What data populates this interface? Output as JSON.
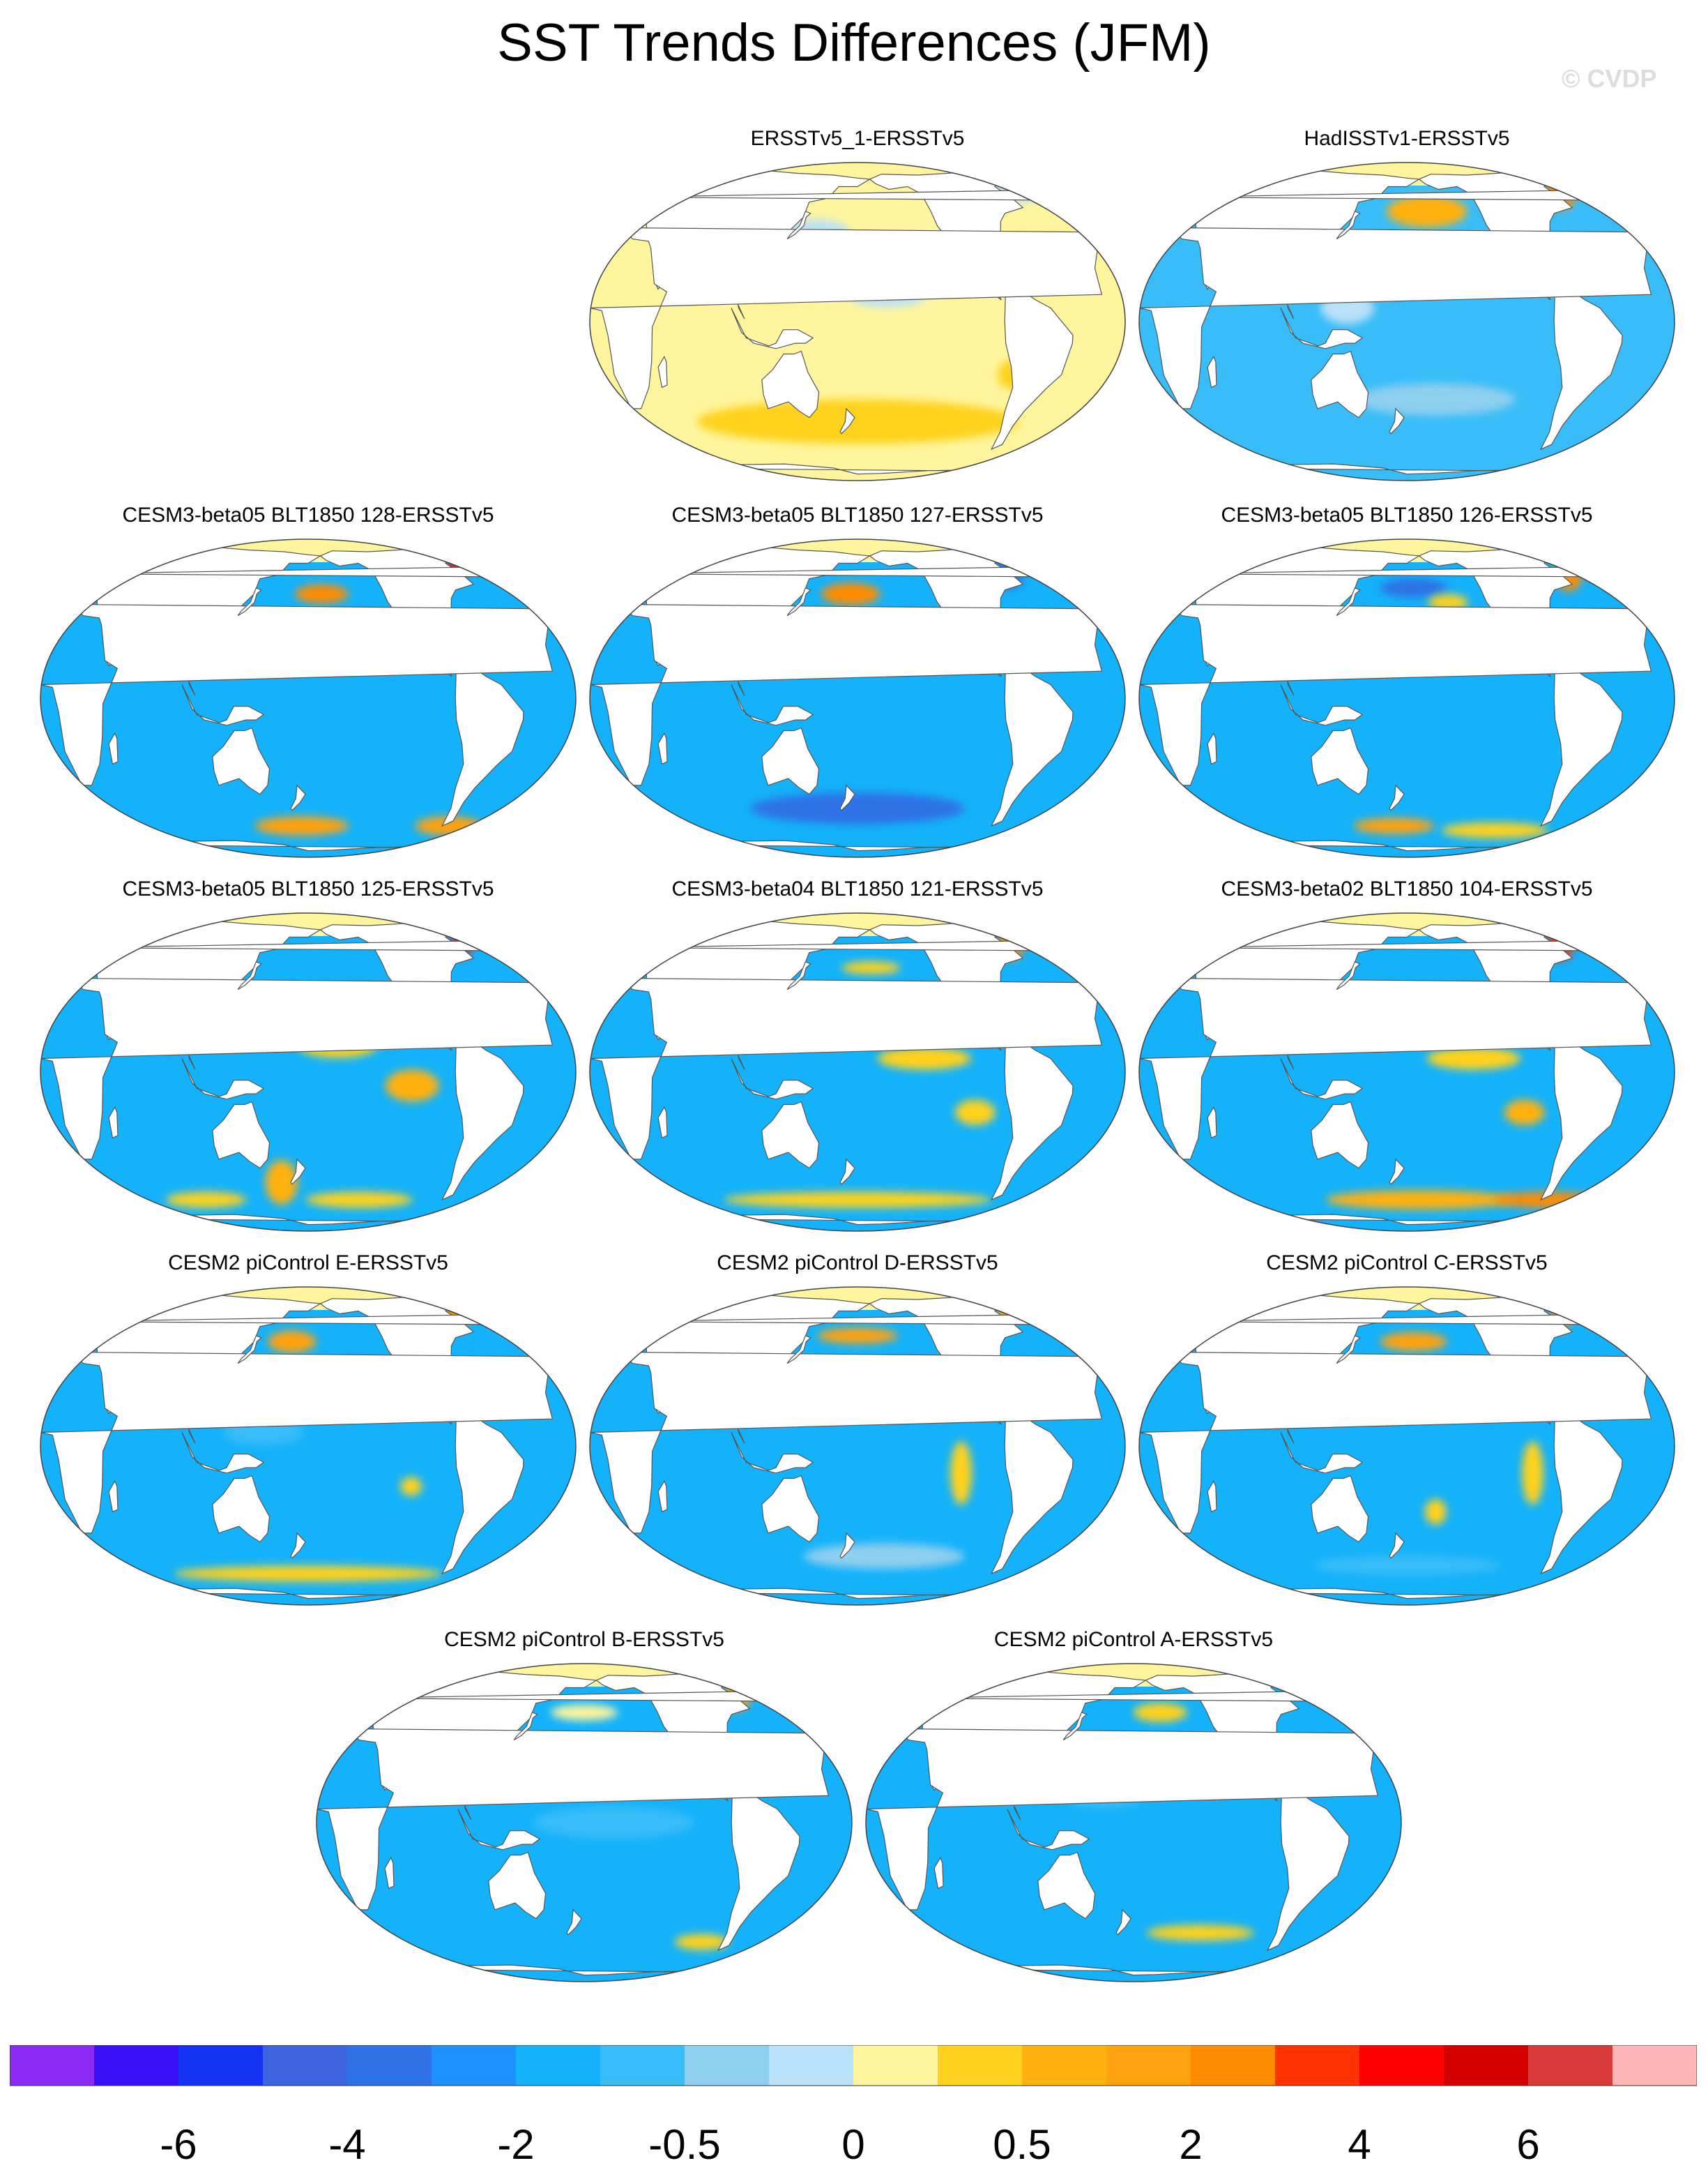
{
  "title": "SST Trends Differences (JFM)",
  "copyright": "© CVDP",
  "chart_data": {
    "type": "heatmap",
    "title": "SST Trends Differences (JFM)",
    "projection": "Robinson, Pacific-centered",
    "panels": [
      {
        "name": "ERSSTv5_1-ERSSTv5",
        "ocean_base": "#fff59e",
        "blobs": [
          {
            "lon": 180,
            "lat": -40,
            "rx": 120,
            "ry": 14,
            "color": "#ffd21f"
          },
          {
            "lon": 120,
            "lat": 15,
            "rx": 25,
            "ry": 12,
            "color": "#ffd21f"
          },
          {
            "lon": 200,
            "lat": 10,
            "rx": 30,
            "ry": 8,
            "color": "#b9e1f7"
          },
          {
            "lon": 150,
            "lat": 35,
            "rx": 25,
            "ry": 8,
            "color": "#b9e1f7"
          },
          {
            "lon": 310,
            "lat": 60,
            "rx": 20,
            "ry": 10,
            "color": "#b9e1f7"
          },
          {
            "lon": 290,
            "lat": -20,
            "rx": 15,
            "ry": 10,
            "color": "#ffd21f"
          }
        ]
      },
      {
        "name": "HadISSTv1-ERSSTv5",
        "ocean_base": "#38bdf8",
        "blobs": [
          {
            "lon": 195,
            "lat": 45,
            "rx": 30,
            "ry": 10,
            "color": "#ffb10f"
          },
          {
            "lon": 300,
            "lat": 55,
            "rx": 12,
            "ry": 10,
            "color": "#ff8c00"
          },
          {
            "lon": 140,
            "lat": 5,
            "rx": 20,
            "ry": 10,
            "color": "#b9e1f7"
          },
          {
            "lon": 220,
            "lat": 20,
            "rx": 40,
            "ry": 8,
            "color": "#8fcfef"
          },
          {
            "lon": 200,
            "lat": -30,
            "rx": 60,
            "ry": 10,
            "color": "#8fcfef"
          }
        ]
      },
      {
        "name": "CESM3-beta05 BLT1850 128-ERSSTv5",
        "ocean_base": "#14b2fa",
        "blobs": [
          {
            "lon": 190,
            "lat": 42,
            "rx": 20,
            "ry": 6,
            "color": "#ff8c00"
          },
          {
            "lon": 295,
            "lat": 55,
            "rx": 8,
            "ry": 8,
            "color": "#dd1c1c"
          },
          {
            "lon": 175,
            "lat": -55,
            "rx": 35,
            "ry": 6,
            "color": "#ffa20f"
          },
          {
            "lon": 290,
            "lat": -55,
            "rx": 25,
            "ry": 6,
            "color": "#ffa20f"
          },
          {
            "lon": 200,
            "lat": 15,
            "rx": 50,
            "ry": 8,
            "color": "#38bdf8"
          }
        ]
      },
      {
        "name": "CESM3-beta05 BLT1850 127-ERSSTv5",
        "ocean_base": "#14b2fa",
        "blobs": [
          {
            "lon": 175,
            "lat": 42,
            "rx": 22,
            "ry": 7,
            "color": "#ff8c00"
          },
          {
            "lon": 180,
            "lat": -45,
            "rx": 80,
            "ry": 10,
            "color": "#2d72e6"
          },
          {
            "lon": 300,
            "lat": 55,
            "rx": 10,
            "ry": 12,
            "color": "#2d72e6"
          },
          {
            "lon": 210,
            "lat": 25,
            "rx": 40,
            "ry": 10,
            "color": "#38bdf8"
          }
        ]
      },
      {
        "name": "CESM3-beta05 BLT1850 126-ERSSTv5",
        "ocean_base": "#14b2fa",
        "blobs": [
          {
            "lon": 185,
            "lat": 45,
            "rx": 25,
            "ry": 6,
            "color": "#2d72e6"
          },
          {
            "lon": 210,
            "lat": 38,
            "rx": 15,
            "ry": 5,
            "color": "#ffd21f"
          },
          {
            "lon": 305,
            "lat": 52,
            "rx": 10,
            "ry": 10,
            "color": "#ff8c00"
          },
          {
            "lon": 170,
            "lat": -55,
            "rx": 30,
            "ry": 5,
            "color": "#ffa20f"
          },
          {
            "lon": 250,
            "lat": -58,
            "rx": 40,
            "ry": 5,
            "color": "#ffd21f"
          }
        ]
      },
      {
        "name": "CESM3-beta05 BLT1850 125-ERSSTv5",
        "ocean_base": "#14b2fa",
        "blobs": [
          {
            "lon": 200,
            "lat": 10,
            "rx": 30,
            "ry": 8,
            "color": "#ffd21f"
          },
          {
            "lon": 250,
            "lat": -5,
            "rx": 20,
            "ry": 10,
            "color": "#ffb10f"
          },
          {
            "lon": 160,
            "lat": -45,
            "rx": 12,
            "ry": 14,
            "color": "#ffb10f"
          },
          {
            "lon": 300,
            "lat": 55,
            "rx": 8,
            "ry": 8,
            "color": "#dd1c1c"
          },
          {
            "lon": 100,
            "lat": -55,
            "rx": 30,
            "ry": 5,
            "color": "#ffd21f"
          },
          {
            "lon": 220,
            "lat": -55,
            "rx": 40,
            "ry": 5,
            "color": "#ffd21f"
          }
        ]
      },
      {
        "name": "CESM3-beta04 BLT1850 121-ERSSTv5",
        "ocean_base": "#14b2fa",
        "blobs": [
          {
            "lon": 225,
            "lat": 5,
            "rx": 35,
            "ry": 7,
            "color": "#ffd21f"
          },
          {
            "lon": 260,
            "lat": -15,
            "rx": 15,
            "ry": 8,
            "color": "#ffd21f"
          },
          {
            "lon": 190,
            "lat": 42,
            "rx": 22,
            "ry": 4,
            "color": "#ffd21f"
          },
          {
            "lon": 180,
            "lat": -55,
            "rx": 100,
            "ry": 5,
            "color": "#ffd21f"
          },
          {
            "lon": 300,
            "lat": 55,
            "rx": 10,
            "ry": 10,
            "color": "#ff8c00"
          }
        ]
      },
      {
        "name": "CESM3-beta02 BLT1850 104-ERSSTv5",
        "ocean_base": "#14b2fa",
        "blobs": [
          {
            "lon": 225,
            "lat": 5,
            "rx": 35,
            "ry": 7,
            "color": "#ffd21f"
          },
          {
            "lon": 260,
            "lat": -15,
            "rx": 15,
            "ry": 8,
            "color": "#ffb10f"
          },
          {
            "lon": 190,
            "lat": -55,
            "rx": 70,
            "ry": 6,
            "color": "#ffb10f"
          },
          {
            "lon": 290,
            "lat": -55,
            "rx": 40,
            "ry": 5,
            "color": "#ff8c00"
          },
          {
            "lon": 300,
            "lat": 55,
            "rx": 10,
            "ry": 10,
            "color": "#ff3300"
          }
        ]
      },
      {
        "name": "CESM2 piControl E-ERSSTv5",
        "ocean_base": "#14b2fa",
        "blobs": [
          {
            "lon": 168,
            "lat": 42,
            "rx": 18,
            "ry": 7,
            "color": "#ffa20f"
          },
          {
            "lon": 295,
            "lat": 55,
            "rx": 10,
            "ry": 8,
            "color": "#ff8c00"
          },
          {
            "lon": 180,
            "lat": -55,
            "rx": 100,
            "ry": 5,
            "color": "#ffd21f"
          },
          {
            "lon": 250,
            "lat": -15,
            "rx": 8,
            "ry": 6,
            "color": "#ffd21f"
          },
          {
            "lon": 150,
            "lat": 5,
            "rx": 30,
            "ry": 8,
            "color": "#38bdf8"
          }
        ]
      },
      {
        "name": "CESM2 piControl D-ERSSTv5",
        "ocean_base": "#14b2fa",
        "blobs": [
          {
            "lon": 180,
            "lat": 45,
            "rx": 30,
            "ry": 5,
            "color": "#ffa20f"
          },
          {
            "lon": 300,
            "lat": 60,
            "rx": 8,
            "ry": 10,
            "color": "#ffa20f"
          },
          {
            "lon": 250,
            "lat": -10,
            "rx": 8,
            "ry": 20,
            "color": "#ffd21f"
          },
          {
            "lon": 200,
            "lat": -45,
            "rx": 60,
            "ry": 8,
            "color": "#8fcfef"
          }
        ]
      },
      {
        "name": "CESM2 piControl C-ERSSTv5",
        "ocean_base": "#14b2fa",
        "blobs": [
          {
            "lon": 185,
            "lat": 42,
            "rx": 25,
            "ry": 6,
            "color": "#ffa20f"
          },
          {
            "lon": 300,
            "lat": 55,
            "rx": 8,
            "ry": 8,
            "color": "#ff8c00"
          },
          {
            "lon": 200,
            "lat": -25,
            "rx": 8,
            "ry": 8,
            "color": "#ffd21f"
          },
          {
            "lon": 265,
            "lat": -10,
            "rx": 8,
            "ry": 20,
            "color": "#ffd21f"
          },
          {
            "lon": 180,
            "lat": -50,
            "rx": 70,
            "ry": 6,
            "color": "#38bdf8"
          }
        ]
      },
      {
        "name": "CESM2 piControl B-ERSSTv5",
        "ocean_base": "#14b2fa",
        "blobs": [
          {
            "lon": 180,
            "lat": 45,
            "rx": 25,
            "ry": 5,
            "color": "#fff59e"
          },
          {
            "lon": 300,
            "lat": 55,
            "rx": 10,
            "ry": 10,
            "color": "#ffa20f"
          },
          {
            "lon": 270,
            "lat": -50,
            "rx": 20,
            "ry": 5,
            "color": "#ffd21f"
          },
          {
            "lon": 200,
            "lat": 0,
            "rx": 60,
            "ry": 10,
            "color": "#38bdf8"
          }
        ]
      },
      {
        "name": "CESM2 piControl A-ERSSTv5",
        "ocean_base": "#14b2fa",
        "blobs": [
          {
            "lon": 200,
            "lat": 45,
            "rx": 20,
            "ry": 6,
            "color": "#ffd21f"
          },
          {
            "lon": 230,
            "lat": -45,
            "rx": 40,
            "ry": 5,
            "color": "#ffd21f"
          },
          {
            "lon": 160,
            "lat": 10,
            "rx": 30,
            "ry": 8,
            "color": "#38bdf8"
          }
        ]
      }
    ],
    "colorbar": {
      "colors": [
        "#8c2af5",
        "#3a10f7",
        "#1432f2",
        "#3d63e0",
        "#2d72e6",
        "#1e90ff",
        "#14b2fa",
        "#38bdf8",
        "#8fcfef",
        "#b9e1f7",
        "#fff59e",
        "#ffd21f",
        "#ffb10f",
        "#ffa20f",
        "#ff8c00",
        "#ff3300",
        "#ff0000",
        "#d40000",
        "#d93a3a",
        "#ffb6b6"
      ],
      "labels": [
        "-6",
        "-4",
        "-2",
        "-0.5",
        "0",
        "0.5",
        "2",
        "4",
        "6"
      ]
    },
    "land_color": "#ffffff",
    "arctic_color": "#fff59e"
  }
}
